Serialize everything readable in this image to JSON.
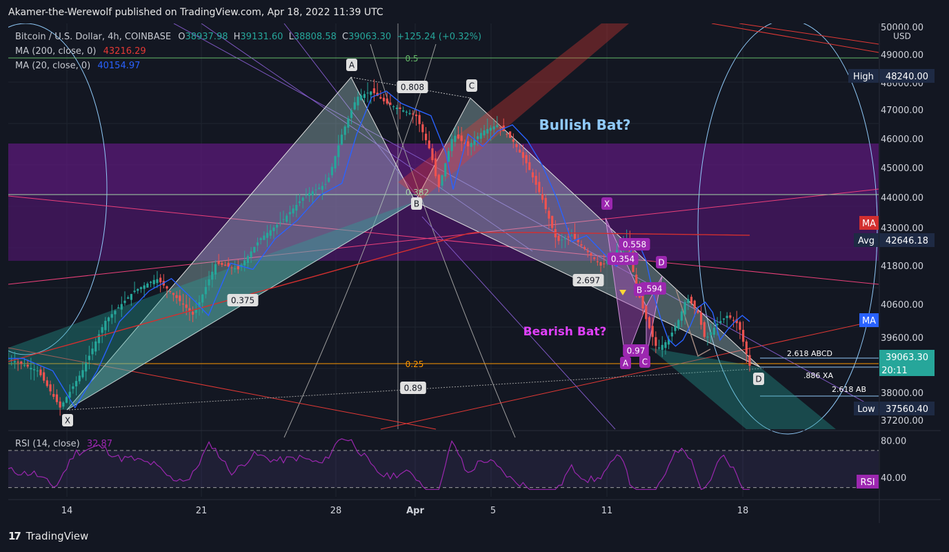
{
  "header": {
    "published": "Akamer-the-Werewolf published on TradingView.com, Apr 18, 2022 11:39 UTC"
  },
  "footer": {
    "brand": "TradingView",
    "logo": "tradingview-logo"
  },
  "legend": {
    "symbol": "Bitcoin / U.S. Dollar, 4h, COINBASE",
    "o_label": "O",
    "o": "38937.98",
    "h_label": "H",
    "h": "39131.60",
    "l_label": "L",
    "l": "38808.58",
    "c_label": "C",
    "c": "39063.30",
    "change": "+125.24 (+0.32%)",
    "ma200_label": "MA (200, close, 0)",
    "ma200": "43216.29",
    "ma20_label": "MA (20, close, 0)",
    "ma20": "40154.97",
    "rsi_label": "RSI (14, close)",
    "rsi": "32.87"
  },
  "price_axis": {
    "currency": "USD",
    "ticks": [
      "50000.00",
      "49000.00",
      "48000.00",
      "47000.00",
      "46000.00",
      "45000.00",
      "44000.00",
      "43000.00",
      "41800.00",
      "40600.00",
      "39600.00",
      "38000.00",
      "37200.00"
    ],
    "badges": {
      "high_label": "High",
      "high": "48240.00",
      "ma_label": "MA",
      "avg_label": "Avg",
      "avg": "42646.18",
      "last": "39063.30",
      "countdown": "20:11",
      "low_label": "Low",
      "low": "37560.40"
    }
  },
  "rsi_axis": {
    "ticks": [
      "80.00",
      "40.00"
    ],
    "badge": "RSI"
  },
  "time_axis": {
    "ticks": [
      "14",
      "21",
      "28",
      "Apr",
      "5",
      "11",
      "18"
    ]
  },
  "annotations": {
    "bullish": "Bullish Bat?",
    "bearish": "Bearish Bat?",
    "fib": [
      "0.5",
      "0.382",
      "0.25"
    ],
    "ratios": [
      "0.808",
      "0.375",
      "0.89",
      "2.697",
      "0.558",
      "0.354",
      ".594",
      "0.97"
    ],
    "points_big": [
      "X",
      "A",
      "B",
      "C",
      "D"
    ],
    "points_small": [
      "X",
      "A",
      "B",
      "C",
      "D"
    ],
    "proj": [
      "2.618 ABCD",
      ".886 XA",
      "2.618 AB"
    ]
  },
  "colors": {
    "bg": "#131722",
    "up": "#26a69a",
    "down": "#ef5350",
    "ma200": "#d32f2f",
    "ma20": "#2962ff",
    "rsi": "#9c27b0",
    "purple_zone": "#6a1b9a",
    "bat_fill": "#b2d8d8"
  },
  "chart_data": {
    "type": "candlestick",
    "title": "Bitcoin / U.S. Dollar, 4h, COINBASE",
    "ylim": [
      37000,
      50200
    ],
    "x": [
      "14",
      "21",
      "28",
      "Apr",
      "5",
      "11",
      "18"
    ],
    "ohlc_last": {
      "open": 38937.98,
      "high": 39131.6,
      "low": 38808.58,
      "close": 39063.3
    },
    "high": 48240.0,
    "low": 37560.4,
    "avg": 42646.18,
    "series": [
      {
        "name": "MA (200, close, 0)",
        "last": 43216.29
      },
      {
        "name": "MA (20, close, 0)",
        "last": 40154.97
      },
      {
        "name": "RSI (14, close)",
        "last": 32.87,
        "ylim": [
          20,
          90
        ]
      }
    ],
    "approx_close_path": [
      [
        0,
        39300
      ],
      [
        0.04,
        38900
      ],
      [
        0.07,
        37700
      ],
      [
        0.1,
        38900
      ],
      [
        0.13,
        40500
      ],
      [
        0.17,
        41500
      ],
      [
        0.2,
        41900
      ],
      [
        0.23,
        41200
      ],
      [
        0.25,
        40700
      ],
      [
        0.28,
        42400
      ],
      [
        0.31,
        42200
      ],
      [
        0.34,
        43200
      ],
      [
        0.37,
        43800
      ],
      [
        0.4,
        44600
      ],
      [
        0.43,
        45000
      ],
      [
        0.45,
        46600
      ],
      [
        0.47,
        47800
      ],
      [
        0.49,
        48000
      ],
      [
        0.51,
        47600
      ],
      [
        0.53,
        47400
      ],
      [
        0.55,
        47200
      ],
      [
        0.57,
        46000
      ],
      [
        0.58,
        44800
      ],
      [
        0.6,
        46600
      ],
      [
        0.62,
        46200
      ],
      [
        0.64,
        46700
      ],
      [
        0.66,
        46900
      ],
      [
        0.68,
        46400
      ],
      [
        0.7,
        45600
      ],
      [
        0.72,
        44500
      ],
      [
        0.74,
        43100
      ],
      [
        0.76,
        43300
      ],
      [
        0.78,
        42800
      ],
      [
        0.8,
        42300
      ],
      [
        0.82,
        42800
      ],
      [
        0.835,
        43200
      ],
      [
        0.845,
        41800
      ],
      [
        0.86,
        40600
      ],
      [
        0.875,
        39600
      ],
      [
        0.89,
        39900
      ],
      [
        0.905,
        40600
      ],
      [
        0.915,
        41300
      ],
      [
        0.93,
        40800
      ],
      [
        0.94,
        39900
      ],
      [
        0.955,
        40400
      ],
      [
        0.97,
        40700
      ],
      [
        0.985,
        40400
      ],
      [
        1.0,
        39063
      ]
    ]
  }
}
